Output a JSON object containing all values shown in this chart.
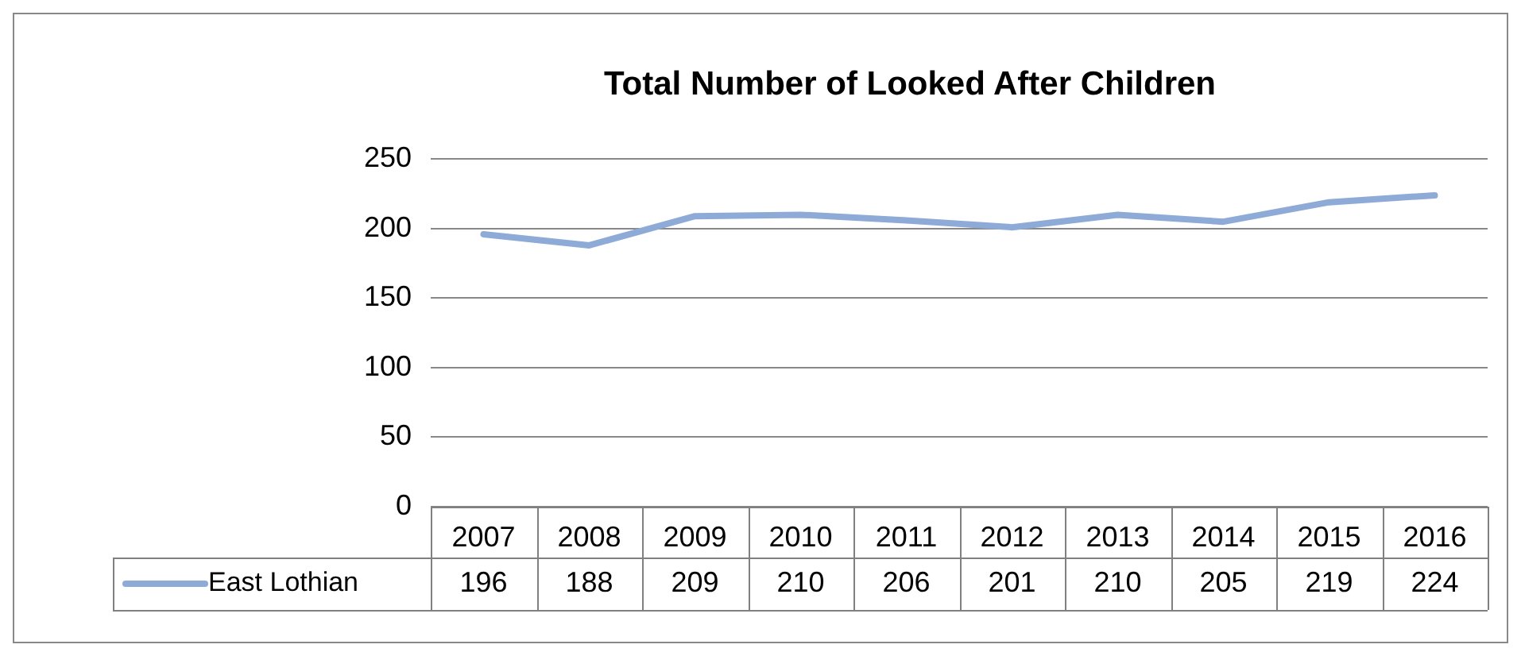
{
  "chart_data": {
    "type": "line",
    "title": "Total Number of Looked After Children",
    "categories": [
      "2007",
      "2008",
      "2009",
      "2010",
      "2011",
      "2012",
      "2013",
      "2014",
      "2015",
      "2016"
    ],
    "series": [
      {
        "name": "East Lothian",
        "color": "#8eaad6",
        "values": [
          196,
          188,
          209,
          210,
          206,
          201,
          210,
          205,
          219,
          224
        ]
      }
    ],
    "ylim": [
      0,
      250
    ],
    "yticks": [
      0,
      50,
      100,
      150,
      200,
      250
    ],
    "grid": "y",
    "legend": "bottom",
    "data_labels": true,
    "marker": "none",
    "line_style": "solid"
  }
}
